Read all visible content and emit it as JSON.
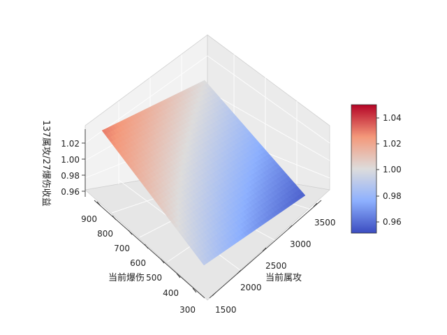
{
  "chart_data": {
    "type": "surface",
    "title": "",
    "xlabel": "当前属攻",
    "ylabel": "当前爆伤",
    "zlabel": "137属攻/27爆伤收益",
    "x_ticks": [
      1500,
      2000,
      2500,
      3000,
      3500
    ],
    "y_ticks": [
      300,
      400,
      500,
      600,
      700,
      800,
      900
    ],
    "z_ticks": [
      0.96,
      0.98,
      1.0,
      1.02
    ],
    "x_range": [
      1500,
      3700
    ],
    "y_range": [
      300,
      950
    ],
    "z_range": [
      0.95,
      1.04
    ],
    "colorbar": {
      "colormap": "coolwarm",
      "range": [
        0.95,
        1.05
      ],
      "ticks": [
        0.96,
        0.98,
        1.0,
        1.02,
        1.04
      ]
    },
    "surface_corners": [
      {
        "x": 1500,
        "y": 300,
        "z": 0.99
      },
      {
        "x": 1500,
        "y": 950,
        "z": 1.03
      },
      {
        "x": 3700,
        "y": 950,
        "z": 1.0
      },
      {
        "x": 3700,
        "y": 300,
        "z": 0.955
      }
    ],
    "grid": true
  },
  "labels": {
    "x_ticks": [
      "1500",
      "2000",
      "2500",
      "3000",
      "3500"
    ],
    "y_ticks": [
      "300",
      "400",
      "500",
      "600",
      "700",
      "800",
      "900"
    ],
    "z_ticks": [
      "0.96",
      "0.98",
      "1.00",
      "1.02"
    ],
    "cbar_ticks": [
      "0.96",
      "0.98",
      "1.00",
      "1.02",
      "1.04"
    ]
  }
}
